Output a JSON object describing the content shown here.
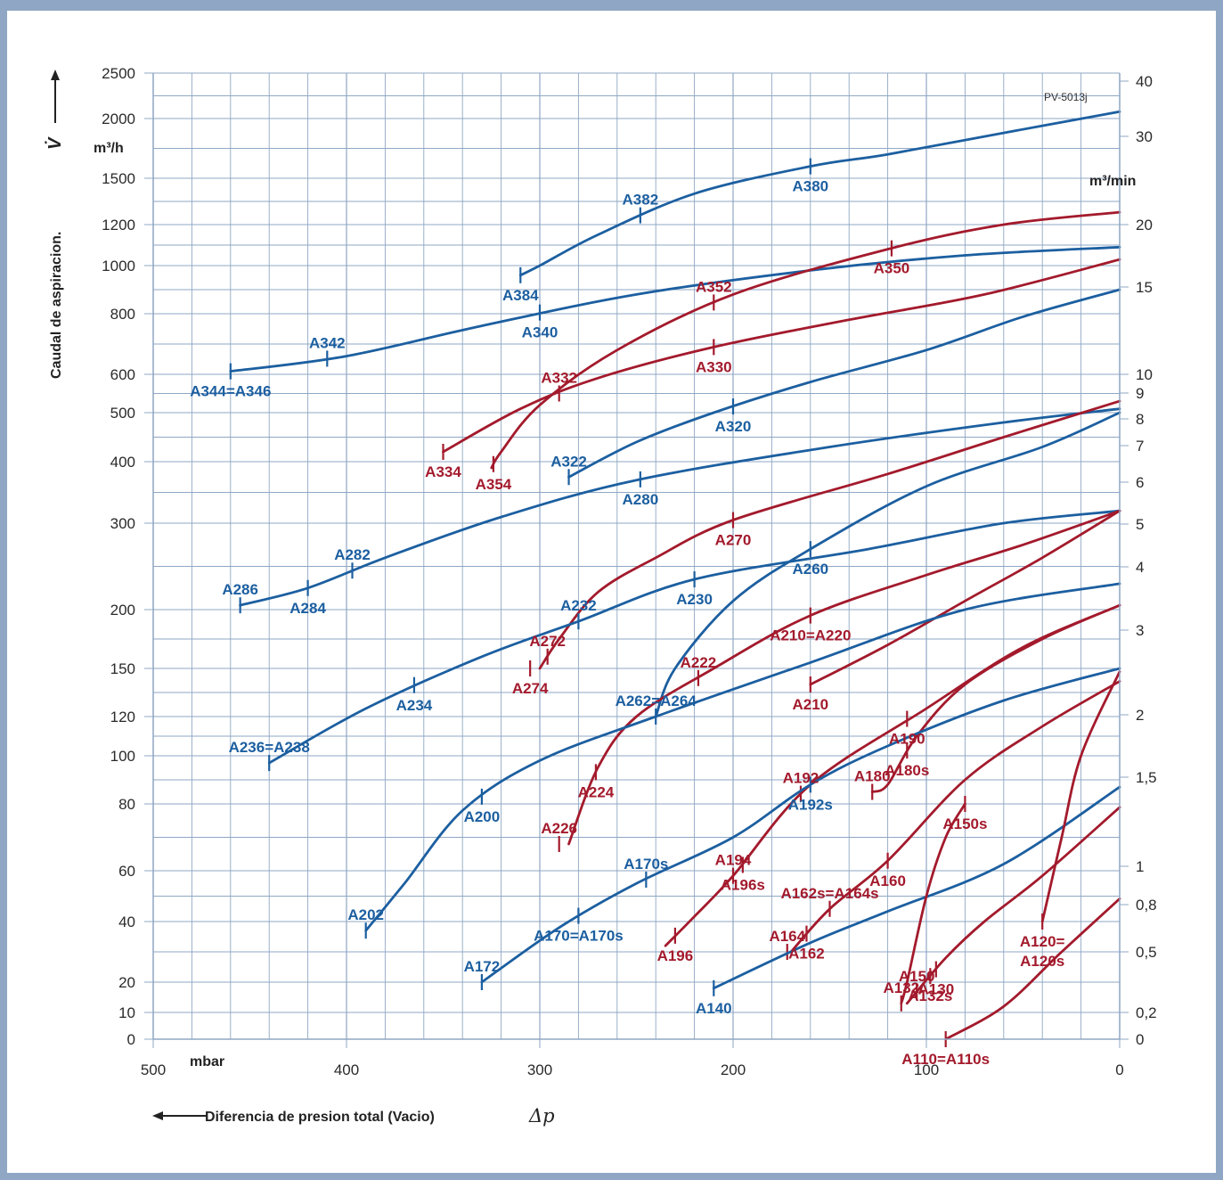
{
  "header": {
    "caption": ""
  },
  "chart_data": {
    "type": "line",
    "code": "PV-5013j",
    "xlabel": "Diferencia de presion total (Vacio)",
    "xsymbol": "Δp",
    "xunit": "mbar",
    "ylabel": "Caudal de aspiracion.",
    "ysymbol": "V̇",
    "yunit_left": "m³/h",
    "yunit_right": "m³/min",
    "xlim": [
      500,
      0
    ],
    "x_ticks": [
      "500",
      "400",
      "300",
      "200",
      "100",
      "0"
    ],
    "y_ticks_left": [
      "0",
      "10",
      "20",
      "40",
      "60",
      "80",
      "100",
      "120",
      "150",
      "200",
      "300",
      "400",
      "500",
      "600",
      "800",
      "1000",
      "1200",
      "1500",
      "2000",
      "2500"
    ],
    "y_ticks_right": [
      "0",
      "0,2",
      "0,5",
      "0,8",
      "1",
      "1,5",
      "2",
      "3",
      "4",
      "5",
      "6",
      "7",
      "8",
      "9",
      "10",
      "15",
      "20",
      "30",
      "40"
    ],
    "colors": {
      "blue": "#1c5fa0",
      "red": "#a31a2c",
      "grid": "#8fa7c4",
      "frame": "#8fa7c4"
    },
    "series": [
      {
        "color": "blue",
        "points": [
          [
            0,
            2075
          ],
          [
            60,
            1880
          ],
          [
            120,
            1700
          ],
          [
            160,
            1600
          ],
          [
            220,
            1400
          ],
          [
            270,
            1150
          ],
          [
            300,
            1000
          ],
          [
            310,
            960
          ]
        ],
        "marks": [
          {
            "x": 160,
            "label": "A380"
          },
          {
            "x": 248,
            "label": "A382"
          },
          {
            "x": 310,
            "label": "A384"
          }
        ]
      },
      {
        "color": "blue",
        "points": [
          [
            0,
            1090
          ],
          [
            80,
            1050
          ],
          [
            160,
            980
          ],
          [
            250,
            880
          ],
          [
            330,
            760
          ],
          [
            400,
            660
          ],
          [
            460,
            610
          ]
        ],
        "marks": [
          {
            "x": 300,
            "label": "A340"
          },
          {
            "x": 410,
            "label": "A342"
          },
          {
            "x": 460,
            "label": "A344=A346"
          }
        ]
      },
      {
        "color": "red",
        "points": [
          [
            0,
            1280
          ],
          [
            60,
            1200
          ],
          [
            120,
            1080
          ],
          [
            200,
            880
          ],
          [
            260,
            680
          ],
          [
            300,
            520
          ],
          [
            320,
            420
          ],
          [
            325,
            390
          ]
        ],
        "marks": [
          {
            "x": 118,
            "label": "A350"
          },
          {
            "x": 210,
            "label": "A352"
          },
          {
            "x": 324,
            "label": "A354"
          }
        ]
      },
      {
        "color": "red",
        "points": [
          [
            0,
            1030
          ],
          [
            70,
            880
          ],
          [
            140,
            780
          ],
          [
            210,
            690
          ],
          [
            270,
            590
          ],
          [
            310,
            510
          ],
          [
            350,
            420
          ]
        ],
        "marks": [
          {
            "x": 210,
            "label": "A330"
          },
          {
            "x": 290,
            "label": "A332"
          },
          {
            "x": 350,
            "label": "A334"
          }
        ]
      },
      {
        "color": "blue",
        "points": [
          [
            0,
            900
          ],
          [
            50,
            790
          ],
          [
            100,
            680
          ],
          [
            160,
            580
          ],
          [
            210,
            500
          ],
          [
            250,
            440
          ],
          [
            285,
            375
          ]
        ],
        "marks": [
          {
            "x": 200,
            "label": "A320"
          },
          {
            "x": 285,
            "label": "A322"
          }
        ]
      },
      {
        "color": "blue",
        "points": [
          [
            0,
            510
          ],
          [
            60,
            480
          ],
          [
            150,
            430
          ],
          [
            250,
            370
          ],
          [
            320,
            310
          ],
          [
            380,
            260
          ],
          [
            420,
            225
          ],
          [
            455,
            205
          ]
        ],
        "marks": [
          {
            "x": 248,
            "label": "A280"
          },
          {
            "x": 397,
            "label": "A282"
          },
          {
            "x": 420,
            "label": "A284"
          },
          {
            "x": 455,
            "label": "A286"
          }
        ]
      },
      {
        "color": "red",
        "points": [
          [
            0,
            530
          ],
          [
            60,
            450
          ],
          [
            120,
            380
          ],
          [
            200,
            305
          ],
          [
            240,
            260
          ],
          [
            270,
            220
          ],
          [
            290,
            175
          ],
          [
            300,
            150
          ]
        ],
        "marks": [
          {
            "x": 200,
            "label": "A270"
          },
          {
            "x": 296,
            "label": "A272"
          },
          {
            "x": 305,
            "label": "A274"
          }
        ]
      },
      {
        "color": "blue",
        "points": [
          [
            0,
            500
          ],
          [
            40,
            430
          ],
          [
            100,
            360
          ],
          [
            160,
            270
          ],
          [
            200,
            210
          ],
          [
            230,
            150
          ],
          [
            240,
            120
          ]
        ],
        "marks": [
          {
            "x": 160,
            "label": "A260"
          },
          {
            "x": 240,
            "label": "A262=A264"
          }
        ]
      },
      {
        "color": "blue",
        "points": [
          [
            0,
            320
          ],
          [
            60,
            300
          ],
          [
            130,
            270
          ],
          [
            220,
            235
          ],
          [
            280,
            190
          ],
          [
            330,
            160
          ],
          [
            390,
            125
          ],
          [
            440,
            97
          ]
        ],
        "marks": [
          {
            "x": 220,
            "label": "A230"
          },
          {
            "x": 280,
            "label": "A232"
          },
          {
            "x": 365,
            "label": "A234"
          },
          {
            "x": 440,
            "label": "A236=A238"
          }
        ]
      },
      {
        "color": "red",
        "points": [
          [
            0,
            320
          ],
          [
            50,
            275
          ],
          [
            100,
            240
          ],
          [
            160,
            195
          ],
          [
            210,
            150
          ],
          [
            250,
            120
          ],
          [
            270,
            95
          ],
          [
            285,
            68
          ]
        ],
        "marks": [
          {
            "x": 160,
            "label": "A210=A220"
          },
          {
            "x": 218,
            "label": "A222"
          },
          {
            "x": 271,
            "label": "A224"
          },
          {
            "x": 290,
            "label": "A226"
          }
        ]
      },
      {
        "color": "red",
        "points": [
          [
            0,
            320
          ],
          [
            40,
            260
          ],
          [
            80,
            210
          ],
          [
            120,
            170
          ],
          [
            160,
            140
          ]
        ],
        "marks": [
          {
            "x": 160,
            "label": "A210"
          }
        ]
      },
      {
        "color": "blue",
        "points": [
          [
            0,
            230
          ],
          [
            80,
            200
          ],
          [
            160,
            155
          ],
          [
            240,
            120
          ],
          [
            300,
            98
          ],
          [
            340,
            78
          ],
          [
            370,
            55
          ],
          [
            390,
            37
          ]
        ],
        "marks": [
          {
            "x": 330,
            "label": "A200"
          },
          {
            "x": 390,
            "label": "A202"
          }
        ]
      },
      {
        "color": "red",
        "points": [
          [
            0,
            205
          ],
          [
            50,
            168
          ],
          [
            100,
            125
          ],
          [
            160,
            88
          ],
          [
            200,
            58
          ],
          [
            220,
            42
          ],
          [
            235,
            32
          ]
        ],
        "marks": [
          {
            "x": 110,
            "label": "A190"
          },
          {
            "x": 165,
            "label": "A192"
          },
          {
            "x": 195,
            "label": "A196s"
          },
          {
            "x": 200,
            "label": "A194"
          },
          {
            "x": 230,
            "label": "A196"
          }
        ]
      },
      {
        "color": "red",
        "points": [
          [
            0,
            205
          ],
          [
            40,
            175
          ],
          [
            80,
            140
          ],
          [
            105,
            110
          ],
          [
            120,
            88
          ],
          [
            128,
            85
          ]
        ],
        "marks": [
          {
            "x": 110,
            "label": "A180s"
          },
          {
            "x": 128,
            "label": "A180"
          }
        ]
      },
      {
        "color": "blue",
        "points": [
          [
            0,
            150
          ],
          [
            60,
            130
          ],
          [
            120,
            105
          ],
          [
            160,
            88
          ],
          [
            200,
            70
          ],
          [
            250,
            55
          ],
          [
            290,
            38
          ],
          [
            330,
            20
          ]
        ],
        "marks": [
          {
            "x": 160,
            "label": "A192s"
          },
          {
            "x": 245,
            "label": "A170s"
          },
          {
            "x": 280,
            "label": "A170=A170s"
          },
          {
            "x": 330,
            "label": "A172"
          }
        ]
      },
      {
        "color": "red",
        "points": [
          [
            0,
            142
          ],
          [
            40,
            115
          ],
          [
            80,
            90
          ],
          [
            120,
            63
          ],
          [
            150,
            45
          ],
          [
            170,
            30
          ]
        ],
        "marks": [
          {
            "x": 120,
            "label": "A160"
          },
          {
            "x": 150,
            "label": "A162s=A164s"
          },
          {
            "x": 162,
            "label": "A162"
          },
          {
            "x": 172,
            "label": "A164"
          }
        ]
      },
      {
        "color": "blue",
        "points": [
          [
            0,
            87
          ],
          [
            60,
            62
          ],
          [
            120,
            44
          ],
          [
            160,
            33
          ],
          [
            210,
            18
          ]
        ],
        "marks": [
          {
            "x": 210,
            "label": "A140"
          }
        ]
      },
      {
        "color": "red",
        "points": [
          [
            0,
            148
          ],
          [
            20,
            100
          ],
          [
            30,
            70
          ],
          [
            40,
            40
          ]
        ],
        "marks": [
          {
            "x": 40,
            "label": "A120= A120s"
          }
        ]
      },
      {
        "color": "red",
        "points": [
          [
            80,
            80
          ],
          [
            90,
            70
          ],
          [
            100,
            50
          ],
          [
            110,
            20
          ],
          [
            113,
            13
          ]
        ],
        "marks": [
          {
            "x": 80,
            "label": "A150s"
          },
          {
            "x": 113,
            "label": "A132"
          }
        ]
      },
      {
        "color": "red",
        "points": [
          [
            0,
            79
          ],
          [
            40,
            58
          ],
          [
            70,
            40
          ],
          [
            90,
            28
          ],
          [
            110,
            13
          ]
        ],
        "marks": [
          {
            "x": 98,
            "label": "A132s"
          },
          {
            "x": 105,
            "label": "A150"
          },
          {
            "x": 95,
            "label": "A130"
          }
        ]
      },
      {
        "color": "red",
        "points": [
          [
            0,
            49
          ],
          [
            30,
            30
          ],
          [
            60,
            12
          ],
          [
            90,
            0
          ]
        ],
        "marks": [
          {
            "x": 90,
            "label": "A110=A110s"
          }
        ]
      }
    ]
  }
}
